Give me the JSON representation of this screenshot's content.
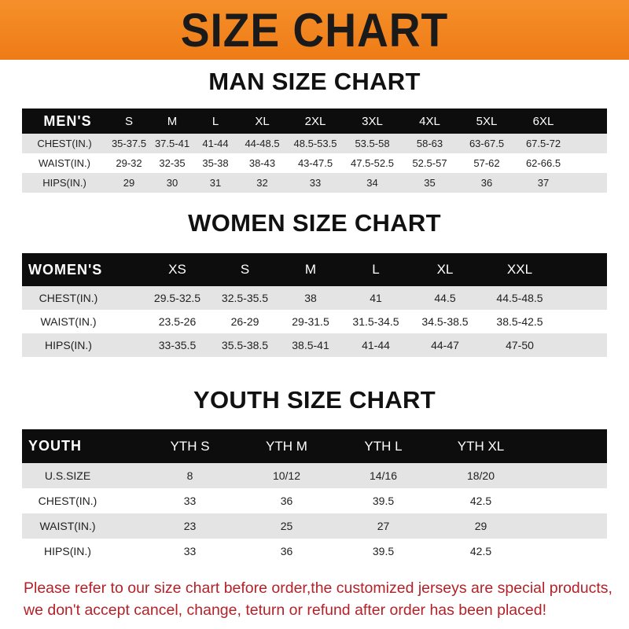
{
  "banner": {
    "title": "SIZE CHART",
    "color": "#f08420"
  },
  "men": {
    "title": "MAN SIZE CHART",
    "header": [
      "MEN'S",
      "S",
      "M",
      "L",
      "XL",
      "2XL",
      "3XL",
      "4XL",
      "5XL",
      "6XL"
    ],
    "rows": [
      [
        "CHEST(IN.)",
        "35-37.5",
        "37.5-41",
        "41-44",
        "44-48.5",
        "48.5-53.5",
        "53.5-58",
        "58-63",
        "63-67.5",
        "67.5-72"
      ],
      [
        "WAIST(IN.)",
        "29-32",
        "32-35",
        "35-38",
        "38-43",
        "43-47.5",
        "47.5-52.5",
        "52.5-57",
        "57-62",
        "62-66.5"
      ],
      [
        "HIPS(IN.)",
        "29",
        "30",
        "31",
        "32",
        "33",
        "34",
        "35",
        "36",
        "37"
      ]
    ]
  },
  "women": {
    "title": "WOMEN SIZE CHART",
    "header": [
      "WOMEN'S",
      "XS",
      "S",
      "M",
      "L",
      "XL",
      "XXL"
    ],
    "rows": [
      [
        "CHEST(IN.)",
        "29.5-32.5",
        "32.5-35.5",
        "38",
        "41",
        "44.5",
        "44.5-48.5"
      ],
      [
        "WAIST(IN.)",
        "23.5-26",
        "26-29",
        "29-31.5",
        "31.5-34.5",
        "34.5-38.5",
        "38.5-42.5"
      ],
      [
        "HIPS(IN.)",
        "33-35.5",
        "35.5-38.5",
        "38.5-41",
        "41-44",
        "44-47",
        "47-50"
      ]
    ]
  },
  "youth": {
    "title": "YOUTH SIZE CHART",
    "header": [
      "YOUTH",
      "YTH S",
      "YTH M",
      "YTH L",
      "YTH XL"
    ],
    "rows": [
      [
        "U.S.SIZE",
        "8",
        "10/12",
        "14/16",
        "18/20"
      ],
      [
        "CHEST(IN.)",
        "33",
        "36",
        "39.5",
        "42.5"
      ],
      [
        "WAIST(IN.)",
        "23",
        "25",
        "27",
        "29"
      ],
      [
        "HIPS(IN.)",
        "33",
        "36",
        "39.5",
        "42.5"
      ]
    ]
  },
  "notice": {
    "line1": "Please refer to our size chart before order,the customized jerseys are special products,",
    "line2": "we don't accept cancel, change, teturn or refund after order has been placed!",
    "color": "#b32229"
  }
}
